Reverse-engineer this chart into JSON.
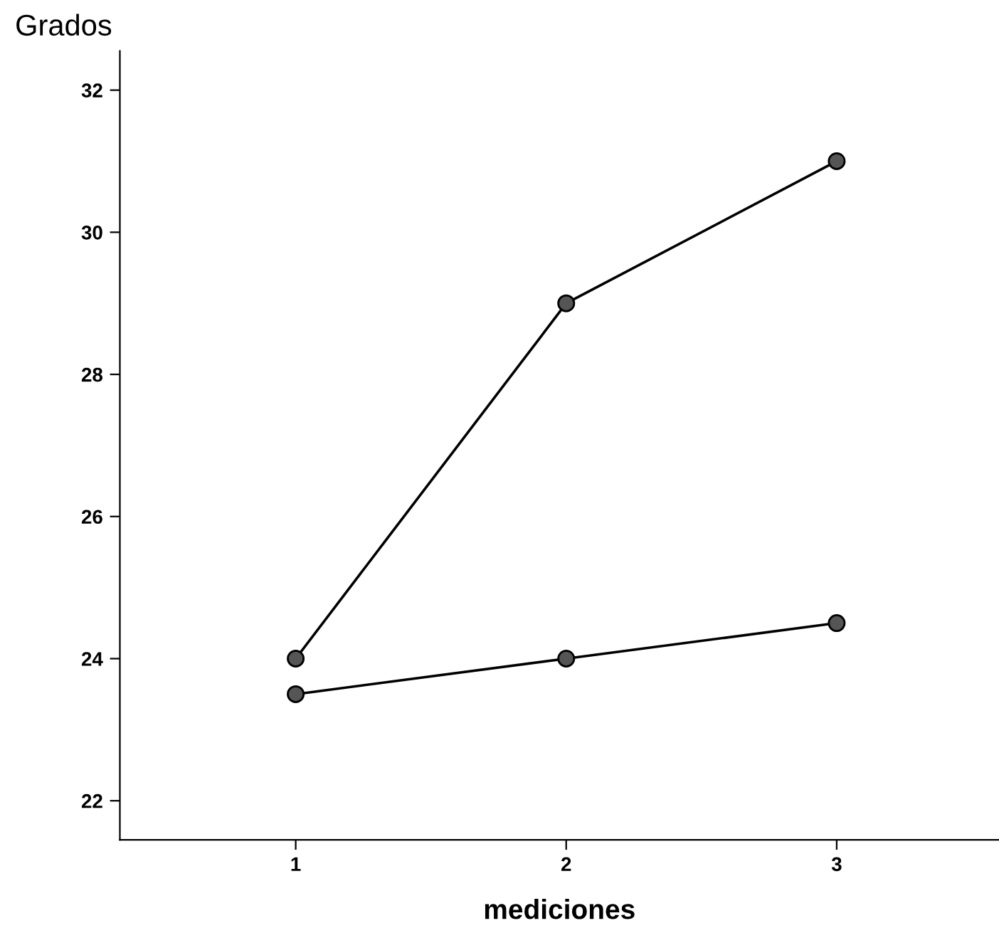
{
  "chart_data": {
    "type": "line",
    "xlabel": "mediciones",
    "ylabel": "Grados",
    "x": [
      1,
      2,
      3
    ],
    "series": [
      {
        "color": "#000000",
        "values": [
          24,
          29,
          31
        ]
      },
      {
        "color": "#000000",
        "values": [
          23.5,
          24,
          24.5
        ]
      }
    ],
    "xlim": [
      0.35,
      3.6
    ],
    "xticks": [
      1,
      2,
      3
    ],
    "ylim": [
      21.45,
      32.55
    ],
    "yticks": [
      22,
      24,
      26,
      28,
      30,
      32
    ],
    "marker": "circle",
    "line_style": "solid",
    "grid": false,
    "legend": false
  }
}
